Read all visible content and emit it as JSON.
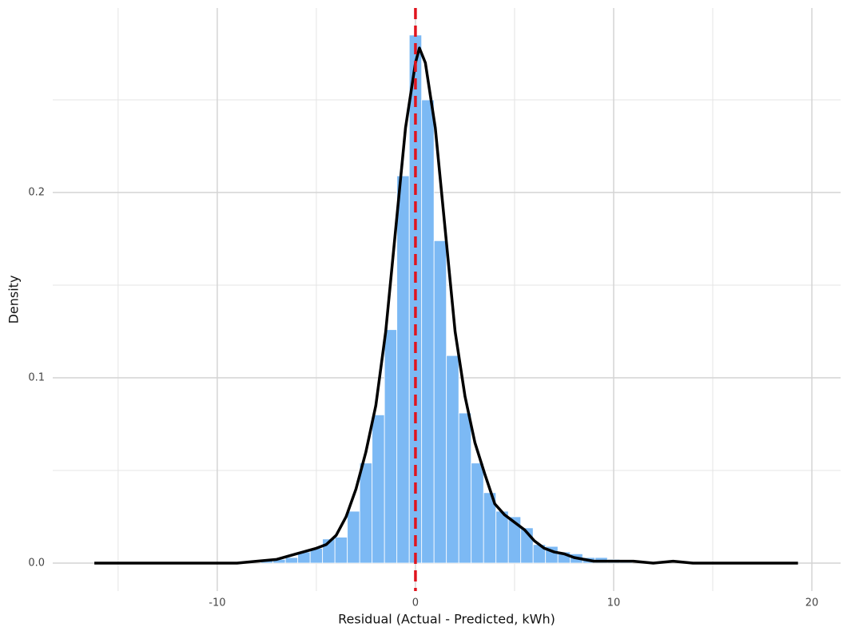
{
  "chart_data": {
    "type": "histogram",
    "xlabel": "Residual (Actual - Predicted, kWh)",
    "ylabel": "Density",
    "bins": [
      -7.8125,
      -7.1875,
      -6.5625,
      -5.9375,
      -5.3125,
      -4.6875,
      -4.0625,
      -3.4375,
      -2.8125,
      -2.1875,
      -1.5625,
      -0.9375,
      -0.3125,
      0.3125,
      0.9375,
      1.5625,
      2.1875,
      2.8125,
      3.4375,
      4.0625,
      4.6875,
      5.3125,
      5.9375,
      6.5625,
      7.1875,
      7.8125,
      8.4375,
      9.0625,
      9.6875,
      10.3125,
      10.9375
    ],
    "counts": [
      0.002,
      0.002,
      0.003,
      0.006,
      0.008,
      0.013,
      0.014,
      0.028,
      0.054,
      0.08,
      0.126,
      0.209,
      0.285,
      0.25,
      0.174,
      0.112,
      0.081,
      0.054,
      0.038,
      0.028,
      0.025,
      0.019,
      0.01,
      0.009,
      0.006,
      0.005,
      0.003,
      0.003,
      0.002,
      0.001
    ],
    "color": "#7cb9f4",
    "density": {
      "color": "#000000",
      "x": [
        -16.2,
        -14,
        -12,
        -10,
        -9,
        -8,
        -7,
        -6,
        -5,
        -4.5,
        -4,
        -3.5,
        -3,
        -2.5,
        -2,
        -1.5,
        -1,
        -0.5,
        0,
        0.2,
        0.5,
        1,
        1.5,
        2,
        2.5,
        3,
        3.5,
        4,
        4.5,
        5,
        5.5,
        6,
        6.5,
        7,
        7.5,
        8,
        9,
        10,
        11,
        12,
        13,
        14,
        16,
        19.3
      ],
      "y": [
        0,
        0,
        0,
        0,
        0,
        0.001,
        0.002,
        0.005,
        0.008,
        0.01,
        0.015,
        0.025,
        0.04,
        0.06,
        0.085,
        0.125,
        0.18,
        0.235,
        0.27,
        0.278,
        0.27,
        0.235,
        0.18,
        0.125,
        0.09,
        0.065,
        0.048,
        0.032,
        0.026,
        0.022,
        0.018,
        0.012,
        0.008,
        0.006,
        0.005,
        0.003,
        0.001,
        0.001,
        0.001,
        0,
        0.001,
        0,
        0,
        0
      ]
    },
    "vline": {
      "x": 0,
      "color": "#e0141e"
    },
    "xlim": [
      -18.3,
      21.45
    ],
    "ylim": [
      -0.0151,
      0.2996
    ],
    "xticks": [
      -10,
      0,
      10,
      20
    ],
    "yticks": [
      {
        "value": 0,
        "label": "0.0"
      },
      {
        "value": 0.1,
        "label": "0.1"
      },
      {
        "value": 0.2,
        "label": "0.2"
      }
    ],
    "xminor": [
      -15,
      -5,
      5,
      15
    ],
    "yminor": [
      0.05,
      0.15,
      0.25
    ],
    "grid": true
  }
}
